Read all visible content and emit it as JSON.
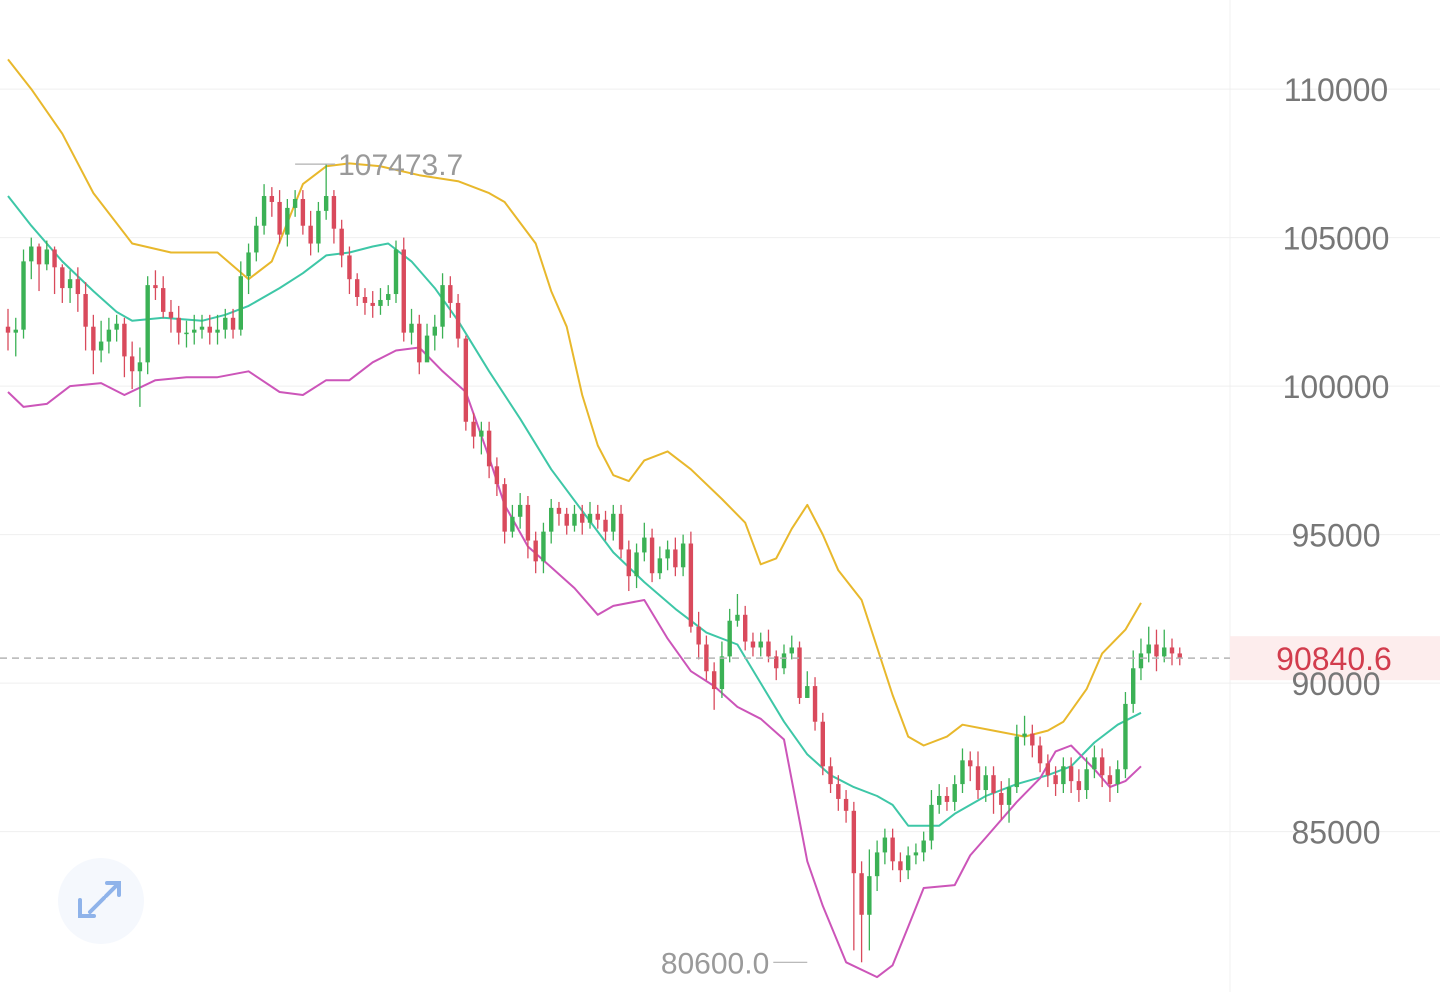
{
  "chart_data": {
    "type": "candlestick",
    "y_ticks": [
      110000,
      105000,
      100000,
      95000,
      90000,
      85000
    ],
    "y_tick_labels": [
      "110000",
      "105000",
      "100000",
      "95000",
      "90000",
      "85000"
    ],
    "ylim": [
      79600,
      113000
    ],
    "grid": true,
    "current_price": 90840.6,
    "current_price_label": "90840.6",
    "high_marker": {
      "index": 37,
      "value": 107473.7,
      "label": "107473.7"
    },
    "low_marker": {
      "index": 103,
      "value": 80600.0,
      "label": "80600.0"
    },
    "colors": {
      "up": "#3bb155",
      "down": "#d94a5c",
      "upper_band": "#e8b82c",
      "middle_band": "#3ec7a7",
      "lower_band": "#cc55b9",
      "price_line": "#b5b5b5",
      "price_tag_bg": "#fdeded",
      "price_tag_text": "#d23c4d",
      "axis_text": "#777777",
      "marker_text": "#9a9a9a"
    },
    "candles": [
      [
        102000,
        101800,
        102600,
        101200
      ],
      [
        101800,
        101900,
        102300,
        101000
      ],
      [
        101900,
        104200,
        104600,
        101600
      ],
      [
        104200,
        104700,
        105000,
        103600
      ],
      [
        104700,
        104100,
        104800,
        103200
      ],
      [
        104100,
        104600,
        104900,
        103900
      ],
      [
        104600,
        104000,
        104700,
        103100
      ],
      [
        104000,
        103300,
        104100,
        102800
      ],
      [
        103300,
        103600,
        103900,
        102800
      ],
      [
        103600,
        103100,
        104000,
        102500
      ],
      [
        103100,
        102000,
        103500,
        101200
      ],
      [
        102000,
        101200,
        102400,
        100400
      ],
      [
        101200,
        101500,
        102200,
        100800
      ],
      [
        101500,
        101900,
        102300,
        101100
      ],
      [
        101900,
        102100,
        102400,
        101500
      ],
      [
        102100,
        101000,
        102300,
        100300
      ],
      [
        101000,
        100500,
        101500,
        99900
      ],
      [
        100500,
        100800,
        101300,
        99300
      ],
      [
        100800,
        103400,
        103700,
        100400
      ],
      [
        103400,
        103300,
        103900,
        102900
      ],
      [
        103300,
        102500,
        103700,
        102300
      ],
      [
        102500,
        102300,
        102900,
        101800
      ],
      [
        102300,
        101800,
        102700,
        101400
      ],
      [
        101800,
        101800,
        102200,
        101300
      ],
      [
        101800,
        101900,
        102400,
        101400
      ],
      [
        101900,
        102000,
        102400,
        101600
      ],
      [
        102000,
        101800,
        102400,
        101400
      ],
      [
        101800,
        101900,
        102400,
        101400
      ],
      [
        101900,
        102300,
        102600,
        101600
      ],
      [
        102300,
        101900,
        102600,
        101600
      ],
      [
        101900,
        103700,
        104200,
        101700
      ],
      [
        103700,
        104500,
        104800,
        103100
      ],
      [
        104500,
        105400,
        105700,
        104200
      ],
      [
        105400,
        106400,
        106800,
        105100
      ],
      [
        106400,
        106200,
        106700,
        105700
      ],
      [
        106200,
        105100,
        106600,
        104800
      ],
      [
        105100,
        106000,
        106300,
        104700
      ],
      [
        106000,
        106300,
        106600,
        105700
      ],
      [
        106300,
        105400,
        106600,
        105100
      ],
      [
        105400,
        104800,
        105900,
        104400
      ],
      [
        104800,
        105900,
        106200,
        104500
      ],
      [
        105900,
        106400,
        107473.7,
        105600
      ],
      [
        106400,
        105300,
        106600,
        104800
      ],
      [
        105300,
        104400,
        105600,
        104000
      ],
      [
        104400,
        103600,
        104700,
        103100
      ],
      [
        103600,
        103000,
        103800,
        102700
      ],
      [
        103000,
        102800,
        103300,
        102400
      ],
      [
        102800,
        102700,
        103200,
        102300
      ],
      [
        102700,
        102900,
        103300,
        102400
      ],
      [
        102900,
        103100,
        103400,
        102700
      ],
      [
        103100,
        104600,
        104900,
        102800
      ],
      [
        104600,
        101800,
        105000,
        101500
      ],
      [
        101800,
        102100,
        102600,
        101400
      ],
      [
        102100,
        100800,
        102400,
        100400
      ],
      [
        100800,
        101700,
        102100,
        101300
      ],
      [
        101700,
        102000,
        102400,
        101200
      ],
      [
        102000,
        103400,
        103800,
        101600
      ],
      [
        103400,
        102800,
        103700,
        102300
      ],
      [
        102800,
        101600,
        103100,
        101300
      ],
      [
        101600,
        98800,
        101700,
        98500
      ],
      [
        98800,
        98300,
        99100,
        97900
      ],
      [
        98300,
        98500,
        98800,
        97700
      ],
      [
        98500,
        97300,
        98800,
        96900
      ],
      [
        97300,
        96700,
        97600,
        96300
      ],
      [
        96700,
        95100,
        96900,
        94700
      ],
      [
        95100,
        95600,
        96000,
        94900
      ],
      [
        95600,
        96000,
        96400,
        95200
      ],
      [
        96000,
        94800,
        96300,
        94200
      ],
      [
        94800,
        94100,
        95100,
        93700
      ],
      [
        94100,
        95100,
        95400,
        93700
      ],
      [
        95100,
        95900,
        96200,
        94700
      ],
      [
        95900,
        95700,
        96100,
        95300
      ],
      [
        95700,
        95300,
        95900,
        95000
      ],
      [
        95300,
        95700,
        96000,
        95100
      ],
      [
        95700,
        95400,
        96000,
        95000
      ],
      [
        95400,
        95700,
        96100,
        95200
      ],
      [
        95700,
        95500,
        96000,
        95200
      ],
      [
        95500,
        95100,
        95800,
        94800
      ],
      [
        95100,
        95700,
        96000,
        94800
      ],
      [
        95700,
        94500,
        96000,
        94200
      ],
      [
        94500,
        93600,
        94800,
        93100
      ],
      [
        93600,
        94400,
        94700,
        93200
      ],
      [
        94400,
        94900,
        95400,
        94100
      ],
      [
        94900,
        93700,
        95200,
        93400
      ],
      [
        93700,
        94200,
        94600,
        93500
      ],
      [
        94200,
        94500,
        94800,
        93800
      ],
      [
        94500,
        93900,
        94900,
        93600
      ],
      [
        93900,
        94700,
        95000,
        93600
      ],
      [
        94700,
        91900,
        95100,
        91700
      ],
      [
        91900,
        91300,
        92400,
        90800
      ],
      [
        91300,
        90400,
        91600,
        90100
      ],
      [
        90400,
        89800,
        90700,
        89100
      ],
      [
        89800,
        90900,
        91400,
        89500
      ],
      [
        90900,
        92100,
        92500,
        90700
      ],
      [
        92100,
        92300,
        93000,
        91900
      ],
      [
        92300,
        91400,
        92600,
        91100
      ],
      [
        91400,
        91200,
        91700,
        90900
      ],
      [
        91200,
        91400,
        91700,
        90900
      ],
      [
        91400,
        90900,
        91800,
        90700
      ],
      [
        90900,
        90500,
        91100,
        90100
      ],
      [
        90500,
        91000,
        91300,
        90300
      ],
      [
        91000,
        91200,
        91600,
        90800
      ],
      [
        91200,
        89500,
        91400,
        89300
      ],
      [
        89500,
        89900,
        90400,
        89500
      ],
      [
        89900,
        88700,
        90200,
        88400
      ],
      [
        88700,
        87200,
        89000,
        86900
      ],
      [
        87200,
        86600,
        87500,
        86300
      ],
      [
        86600,
        86100,
        86900,
        85700
      ],
      [
        86100,
        85700,
        86400,
        85300
      ],
      [
        85700,
        83600,
        86000,
        81000
      ],
      [
        83600,
        82200,
        84000,
        80600
      ],
      [
        82200,
        83500,
        84400,
        81000
      ],
      [
        83500,
        84300,
        84700,
        83000
      ],
      [
        84300,
        84800,
        85100,
        83900
      ],
      [
        84800,
        84000,
        85100,
        83700
      ],
      [
        84000,
        83700,
        84300,
        83300
      ],
      [
        83700,
        84200,
        84500,
        83400
      ],
      [
        84200,
        84300,
        84600,
        83900
      ],
      [
        84300,
        84700,
        85000,
        84000
      ],
      [
        84700,
        85900,
        86400,
        84400
      ],
      [
        85900,
        86200,
        86600,
        85600
      ],
      [
        86200,
        86000,
        86500,
        85700
      ],
      [
        86000,
        86600,
        86900,
        85700
      ],
      [
        86600,
        87400,
        87800,
        86300
      ],
      [
        87400,
        87200,
        87700,
        86700
      ],
      [
        87200,
        86400,
        87700,
        86100
      ],
      [
        86400,
        86900,
        87200,
        86000
      ],
      [
        86900,
        86300,
        87200,
        85600
      ],
      [
        86300,
        85900,
        86700,
        85400
      ],
      [
        85900,
        86500,
        86800,
        85300
      ],
      [
        86500,
        88200,
        88600,
        86300
      ],
      [
        88200,
        88300,
        88900,
        87900
      ],
      [
        88300,
        87900,
        88600,
        87500
      ],
      [
        87900,
        87300,
        88200,
        87000
      ],
      [
        87300,
        86900,
        87600,
        86500
      ],
      [
        86900,
        86600,
        87200,
        86200
      ],
      [
        86600,
        87200,
        87500,
        86300
      ],
      [
        87200,
        86700,
        87500,
        86300
      ],
      [
        86700,
        86400,
        87100,
        86000
      ],
      [
        86400,
        87100,
        87500,
        86100
      ],
      [
        87100,
        87500,
        87900,
        86800
      ],
      [
        87500,
        86900,
        87800,
        86500
      ],
      [
        86900,
        86600,
        87200,
        86000
      ],
      [
        86600,
        87100,
        87400,
        86300
      ],
      [
        87100,
        89300,
        89700,
        86800
      ],
      [
        89300,
        90500,
        91100,
        89000
      ],
      [
        90500,
        91000,
        91500,
        90100
      ],
      [
        91000,
        91300,
        91900,
        90700
      ],
      [
        91300,
        90900,
        91800,
        90400
      ],
      [
        90900,
        91200,
        91800,
        90700
      ],
      [
        91200,
        91000,
        91500,
        90600
      ],
      [
        91000,
        90840.6,
        91200,
        90600
      ]
    ],
    "upper_band": [
      [
        0,
        111000
      ],
      [
        3,
        110000
      ],
      [
        7,
        108500
      ],
      [
        11,
        106500
      ],
      [
        16,
        104800
      ],
      [
        21,
        104500
      ],
      [
        27,
        104500
      ],
      [
        31,
        103600
      ],
      [
        34,
        104200
      ],
      [
        38,
        106800
      ],
      [
        41,
        107400
      ],
      [
        44,
        107500
      ],
      [
        48,
        107400
      ],
      [
        53,
        107100
      ],
      [
        58,
        106900
      ],
      [
        62,
        106500
      ],
      [
        64,
        106200
      ],
      [
        68,
        104800
      ],
      [
        70,
        103200
      ],
      [
        72,
        102000
      ],
      [
        74,
        99700
      ],
      [
        76,
        98000
      ],
      [
        78,
        97000
      ],
      [
        80,
        96800
      ],
      [
        82,
        97500
      ],
      [
        85,
        97800
      ],
      [
        88,
        97200
      ],
      [
        92,
        96200
      ],
      [
        95,
        95400
      ],
      [
        97,
        94000
      ],
      [
        99,
        94200
      ],
      [
        101,
        95200
      ],
      [
        103,
        96000
      ],
      [
        105,
        95000
      ],
      [
        107,
        93800
      ],
      [
        110,
        92800
      ],
      [
        112,
        91200
      ],
      [
        114,
        89600
      ],
      [
        116,
        88200
      ],
      [
        118,
        87900
      ],
      [
        121,
        88200
      ],
      [
        123,
        88600
      ],
      [
        127,
        88400
      ],
      [
        131,
        88200
      ],
      [
        134,
        88400
      ],
      [
        136,
        88700
      ],
      [
        139,
        89800
      ],
      [
        141,
        91000
      ],
      [
        144,
        91800
      ],
      [
        146,
        92700
      ]
    ],
    "middle_band": [
      [
        0,
        106400
      ],
      [
        3,
        105400
      ],
      [
        7,
        104200
      ],
      [
        11,
        103200
      ],
      [
        14,
        102500
      ],
      [
        16,
        102200
      ],
      [
        20,
        102300
      ],
      [
        25,
        102200
      ],
      [
        28,
        102400
      ],
      [
        31,
        102700
      ],
      [
        35,
        103300
      ],
      [
        38,
        103800
      ],
      [
        41,
        104400
      ],
      [
        44,
        104500
      ],
      [
        47,
        104700
      ],
      [
        49,
        104800
      ],
      [
        52,
        104200
      ],
      [
        55,
        103300
      ],
      [
        58,
        102200
      ],
      [
        62,
        100500
      ],
      [
        66,
        98900
      ],
      [
        70,
        97200
      ],
      [
        74,
        95800
      ],
      [
        78,
        94400
      ],
      [
        82,
        93400
      ],
      [
        86,
        92500
      ],
      [
        90,
        91700
      ],
      [
        94,
        91300
      ],
      [
        97,
        90000
      ],
      [
        100,
        88700
      ],
      [
        103,
        87600
      ],
      [
        106,
        86900
      ],
      [
        109,
        86500
      ],
      [
        112,
        86200
      ],
      [
        114,
        85900
      ],
      [
        116,
        85200
      ],
      [
        120,
        85200
      ],
      [
        122,
        85600
      ],
      [
        126,
        86200
      ],
      [
        130,
        86600
      ],
      [
        134,
        86900
      ],
      [
        137,
        87200
      ],
      [
        140,
        88000
      ],
      [
        143,
        88600
      ],
      [
        146,
        89000
      ]
    ],
    "lower_band": [
      [
        0,
        99800
      ],
      [
        2,
        99300
      ],
      [
        5,
        99400
      ],
      [
        8,
        100000
      ],
      [
        12,
        100100
      ],
      [
        15,
        99700
      ],
      [
        19,
        100200
      ],
      [
        23,
        100300
      ],
      [
        27,
        100300
      ],
      [
        31,
        100500
      ],
      [
        35,
        99800
      ],
      [
        38,
        99700
      ],
      [
        41,
        100200
      ],
      [
        44,
        100200
      ],
      [
        47,
        100800
      ],
      [
        50,
        101200
      ],
      [
        53,
        101300
      ],
      [
        56,
        100500
      ],
      [
        59,
        99800
      ],
      [
        62,
        97600
      ],
      [
        64,
        96000
      ],
      [
        67,
        94600
      ],
      [
        70,
        93900
      ],
      [
        73,
        93200
      ],
      [
        76,
        92300
      ],
      [
        78,
        92600
      ],
      [
        82,
        92800
      ],
      [
        85,
        91500
      ],
      [
        88,
        90400
      ],
      [
        91,
        89900
      ],
      [
        94,
        89200
      ],
      [
        97,
        88800
      ],
      [
        100,
        88100
      ],
      [
        103,
        84000
      ],
      [
        105,
        82500
      ],
      [
        108,
        80600
      ],
      [
        112,
        80100
      ],
      [
        114,
        80500
      ],
      [
        116,
        81800
      ],
      [
        118,
        83100
      ],
      [
        122,
        83200
      ],
      [
        124,
        84200
      ],
      [
        126,
        84800
      ],
      [
        130,
        86000
      ],
      [
        133,
        86800
      ],
      [
        135,
        87700
      ],
      [
        137,
        87900
      ],
      [
        140,
        87100
      ],
      [
        142,
        86500
      ],
      [
        144,
        86700
      ],
      [
        146,
        87200
      ]
    ]
  },
  "controls": {
    "expand_icon": "expand-arrows-icon"
  }
}
